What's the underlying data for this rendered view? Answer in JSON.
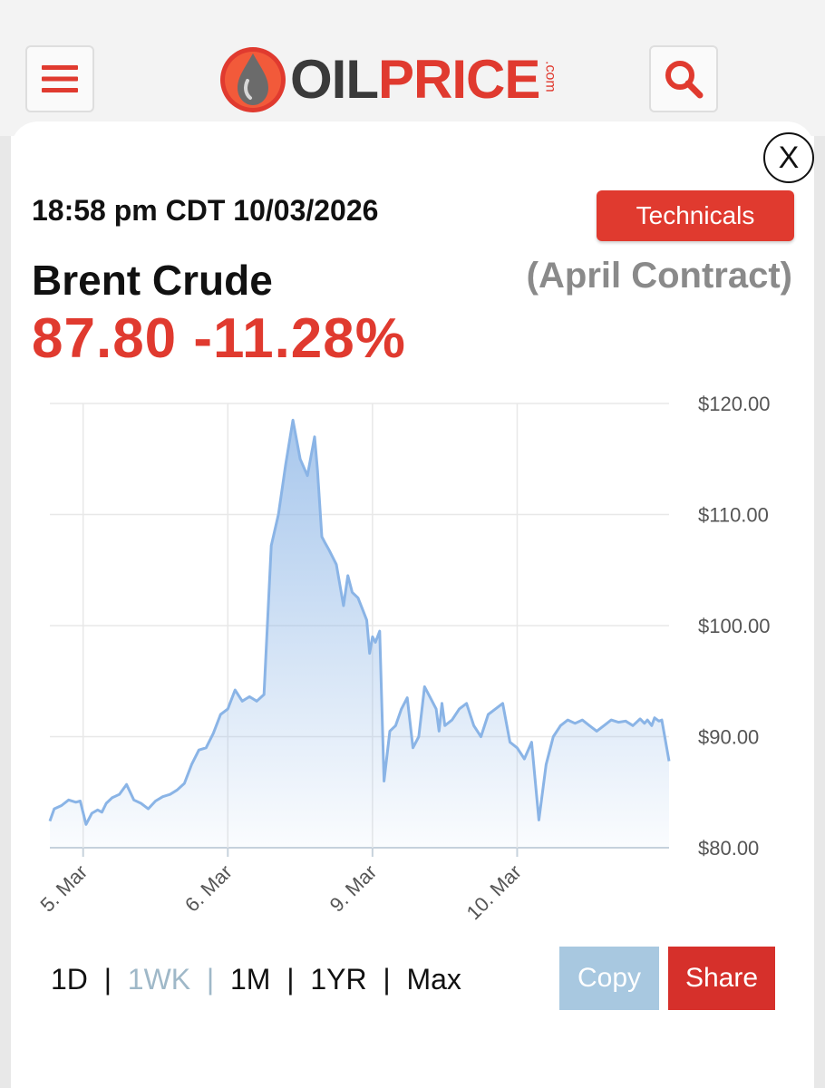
{
  "header": {
    "logo_oil": "OIL",
    "logo_price": "PRICE",
    "logo_com": ".com"
  },
  "quote": {
    "timestamp": "18:58 pm CDT 10/03/2026",
    "technicals_label": "Technicals",
    "close_label": "X",
    "name": "Brent Crude",
    "contract": "(April Contract)",
    "price": "87.80",
    "change": "-11.28%"
  },
  "timeframes": [
    "1D",
    "1WK",
    "1M",
    "1YR",
    "Max"
  ],
  "active_timeframe": "1WK",
  "actions": {
    "copy_label": "Copy",
    "share_label": "Share"
  },
  "colors": {
    "accent": "#e03a2f",
    "line": "#8ab4e6",
    "copy": "#a8c8e0"
  },
  "chart_data": {
    "type": "area",
    "ylim": [
      80,
      120
    ],
    "y_ticks": [
      "$120.00",
      "$110.00",
      "$100.00",
      "$90.00",
      "$80.00"
    ],
    "x_ticks": [
      {
        "label": "5. Mar",
        "x": 0.5
      },
      {
        "label": "6. Mar",
        "x": 1.5
      },
      {
        "label": "9. Mar",
        "x": 2.5
      },
      {
        "label": "10. Mar",
        "x": 3.5
      }
    ],
    "xlim": [
      0.27,
      4.55
    ],
    "grid": true,
    "series": [
      {
        "x": [
          0.27,
          0.3,
          0.35,
          0.4,
          0.45,
          0.48,
          0.52,
          0.56,
          0.6,
          0.63,
          0.66,
          0.7,
          0.75,
          0.8,
          0.85,
          0.9,
          0.95,
          1.0,
          1.05,
          1.1,
          1.15,
          1.2,
          1.25,
          1.3,
          1.35,
          1.4,
          1.45,
          1.5,
          1.55,
          1.6,
          1.65,
          1.7,
          1.75,
          1.8,
          1.85,
          1.9,
          1.95,
          2.0,
          2.05,
          2.1,
          2.12,
          2.15,
          2.17,
          2.2,
          2.25,
          2.3,
          2.33,
          2.36,
          2.4,
          2.43,
          2.46,
          2.48,
          2.5,
          2.52,
          2.55,
          2.58,
          2.62,
          2.66,
          2.7,
          2.74,
          2.78,
          2.82,
          2.86,
          2.9,
          2.94,
          2.96,
          2.98,
          3.0,
          3.05,
          3.1,
          3.15,
          3.2,
          3.25,
          3.3,
          3.35,
          3.4,
          3.45,
          3.5,
          3.55,
          3.6,
          3.65,
          3.7,
          3.75,
          3.8,
          3.85,
          3.9,
          3.95,
          4.0,
          4.05,
          4.1,
          4.15,
          4.2,
          4.25,
          4.3,
          4.35,
          4.38,
          4.4,
          4.43,
          4.45,
          4.48,
          4.5,
          4.55
        ],
        "y": [
          82.4,
          83.5,
          83.8,
          84.3,
          84.1,
          84.2,
          82.1,
          83.1,
          83.4,
          83.2,
          84.0,
          84.5,
          84.8,
          85.7,
          84.3,
          84.0,
          83.5,
          84.2,
          84.6,
          84.8,
          85.2,
          85.8,
          87.5,
          88.8,
          89.0,
          90.3,
          92.0,
          92.5,
          94.2,
          93.2,
          93.6,
          93.2,
          93.8,
          107.2,
          110.0,
          114.5,
          118.5,
          115.0,
          113.5,
          117.0,
          114.0,
          108.0,
          107.5,
          106.8,
          105.5,
          101.8,
          104.5,
          103.0,
          102.5,
          101.5,
          100.5,
          97.5,
          99.0,
          98.5,
          99.5,
          86.0,
          90.5,
          91.0,
          92.5,
          93.5,
          89.0,
          90.0,
          94.5,
          93.5,
          92.5,
          90.5,
          93.0,
          91.0,
          91.5,
          92.5,
          93.0,
          91.0,
          90.0,
          92.0,
          92.5,
          93.0,
          89.5,
          89.0,
          88.0,
          89.5,
          82.5,
          87.5,
          90.0,
          91.0,
          91.5,
          91.2,
          91.5,
          91.0,
          90.5,
          91.0,
          91.5,
          91.3,
          91.4,
          91.0,
          91.6,
          91.2,
          91.5,
          91.0,
          91.7,
          91.4,
          91.5,
          87.8
        ]
      }
    ]
  }
}
